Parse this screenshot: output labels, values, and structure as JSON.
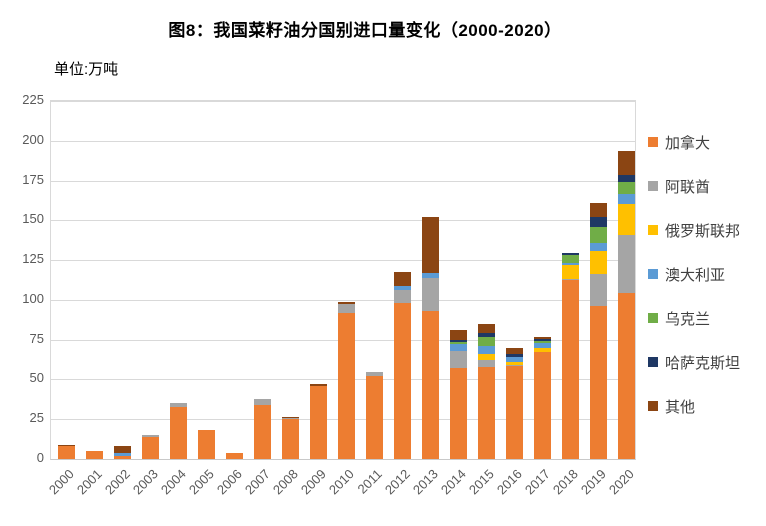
{
  "chart_data": {
    "type": "bar",
    "stacked": true,
    "title": "图8：我国菜籽油分国别进口量变化（2000-2020）",
    "unit_label": "单位:万吨",
    "legend_position": "right",
    "grid": true,
    "categories": [
      "2000",
      "2001",
      "2002",
      "2003",
      "2004",
      "2005",
      "2006",
      "2007",
      "2008",
      "2009",
      "2010",
      "2011",
      "2012",
      "2013",
      "2014",
      "2015",
      "2016",
      "2017",
      "2018",
      "2019",
      "2020"
    ],
    "y_axis": {
      "min": 0,
      "max": 225,
      "step": 25,
      "ticks": [
        "0",
        "25",
        "50",
        "75",
        "100",
        "125",
        "150",
        "175",
        "200",
        "225"
      ]
    },
    "series": [
      {
        "name": "加拿大",
        "color": "#ED7D31",
        "values": [
          8,
          5,
          2,
          14,
          32.5,
          18,
          4,
          34,
          25,
          46,
          92,
          52,
          98,
          93,
          57,
          58,
          58.5,
          67,
          112.5,
          96,
          104.5
        ]
      },
      {
        "name": "阿联酋",
        "color": "#A5A5A5",
        "values": [
          0.5,
          0,
          0,
          1,
          2.5,
          0,
          0,
          4,
          0.5,
          0,
          5.5,
          3,
          8,
          21,
          11,
          4,
          0.5,
          0,
          0.5,
          20,
          36
        ]
      },
      {
        "name": "俄罗斯联邦",
        "color": "#FFC000",
        "values": [
          0,
          0,
          0,
          0,
          0,
          0,
          0,
          0,
          0,
          0,
          0,
          0,
          0,
          0,
          0,
          4,
          2,
          2.5,
          9,
          15,
          20
        ]
      },
      {
        "name": "澳大利亚",
        "color": "#5B9BD5",
        "values": [
          0,
          0,
          2,
          0,
          0,
          0,
          0,
          0,
          0,
          0,
          0,
          0,
          2.5,
          3,
          4,
          5,
          3,
          3.5,
          1.5,
          5,
          6
        ]
      },
      {
        "name": "乌克兰",
        "color": "#70AD47",
        "values": [
          0,
          0,
          0,
          0,
          0,
          0,
          0,
          0,
          0,
          0,
          0,
          0,
          0,
          0,
          1.5,
          6,
          0,
          1.5,
          4.5,
          10,
          7.5
        ]
      },
      {
        "name": "哈萨克斯坦",
        "color": "#1F3864",
        "values": [
          0,
          0,
          0,
          0,
          0,
          0,
          0,
          0,
          0,
          0,
          0,
          0,
          0.5,
          0,
          1.5,
          2,
          2,
          1,
          1.5,
          6,
          4.5
        ]
      },
      {
        "name": "其他",
        "color": "#8B4513",
        "values": [
          0.5,
          0,
          4,
          0,
          0,
          0,
          0,
          0,
          1,
          1,
          1.5,
          0,
          8.5,
          35,
          6,
          6,
          4,
          1,
          0,
          9,
          15
        ]
      }
    ]
  }
}
